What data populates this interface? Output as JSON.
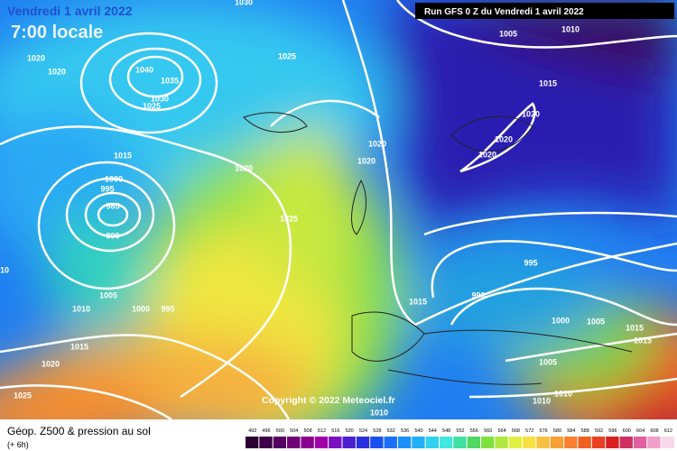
{
  "header": {
    "date": "Vendredi 1 avril 2022",
    "time": "7:00 locale",
    "run": "Run GFS 0 Z du Vendredi 1 avril 2022"
  },
  "copyright": "Copyright © 2022 Meteociel.fr",
  "legend": {
    "title": "Géop. Z500 & pression au sol",
    "step": "(+ 6h)",
    "scale": [
      492,
      496,
      500,
      504,
      508,
      512,
      516,
      520,
      524,
      528,
      532,
      536,
      540,
      544,
      548,
      552,
      556,
      560,
      564,
      568,
      572,
      576,
      580,
      584,
      588,
      592,
      596,
      600,
      604,
      608,
      612
    ]
  },
  "isobar_labels": [
    1030,
    1005,
    1010,
    1020,
    1020,
    1040,
    1035,
    1030,
    1025,
    1025,
    1015,
    1020,
    1020,
    1020,
    1020,
    1020,
    1015,
    1020,
    1000,
    995,
    985,
    990,
    1025,
    10,
    995,
    1015,
    990,
    1005,
    1010,
    1000,
    995,
    1000,
    1005,
    1015,
    1015,
    1015,
    1020,
    1005,
    1025,
    1010,
    1010,
    1010
  ]
}
